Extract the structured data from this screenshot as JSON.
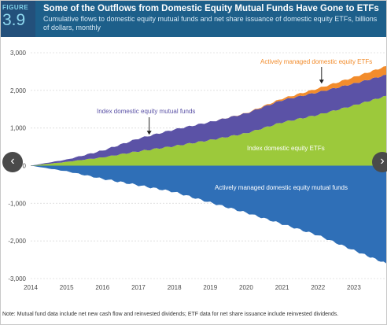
{
  "header": {
    "figure_word": "FIGURE",
    "figure_number": "3.9",
    "title": "Some of the Outflows from Domestic Equity Mutual Funds Have Gone to ETFs",
    "subtitle": "Cumulative flows to domestic equity mutual funds and net share issuance of domestic equity ETFs, billions of dollars, monthly"
  },
  "note": "Note: Mutual fund data include net new cash flow and reinvested dividends; ETF data for net share issuance include reinvested dividends.",
  "nav": {
    "prev_glyph": "‹",
    "next_glyph": "›"
  },
  "colors": {
    "header_bg": "#1d5f8a",
    "index_etf": "#9cc93b",
    "index_mutual_fund": "#5b52a6",
    "active_etf": "#f28c2c",
    "active_mutual_fund": "#2f6fb7"
  },
  "chart_data": {
    "type": "area",
    "x": [
      2014,
      2015,
      2016,
      2017,
      2018,
      2019,
      2020,
      2021,
      2022,
      2023,
      2023.9
    ],
    "ylim": [
      -3000,
      3000
    ],
    "y_ticks": [
      -3000,
      -2000,
      -1000,
      0,
      1000,
      2000,
      3000
    ],
    "y_tick_labels": [
      "-3,000",
      "-2,000",
      "-1,000",
      "0",
      "1,000",
      "2,000",
      "3,000"
    ],
    "x_ticks": [
      2014,
      2015,
      2016,
      2017,
      2018,
      2019,
      2020,
      2021,
      2022,
      2023
    ],
    "x_tick_labels": [
      "2014",
      "2015",
      "2016",
      "2017",
      "2018",
      "2019",
      "2020",
      "2021",
      "2022",
      "2023"
    ],
    "grid": true,
    "series": [
      {
        "name": "Index domestic equity ETFs",
        "stacked": "positive",
        "values": [
          0,
          100,
          220,
          380,
          520,
          680,
          860,
          1150,
          1350,
          1600,
          1850
        ]
      },
      {
        "name": "Index domestic equity mutual funds",
        "stacked": "positive",
        "values": [
          0,
          60,
          180,
          340,
          440,
          480,
          530,
          590,
          600,
          580,
          560
        ]
      },
      {
        "name": "Actively managed domestic equity ETFs",
        "stacked": "positive",
        "values": [
          0,
          0,
          0,
          0,
          0,
          0,
          5,
          40,
          100,
          170,
          230
        ]
      },
      {
        "name": "Actively managed domestic equity mutual funds",
        "stacked": "negative",
        "values": [
          0,
          -150,
          -350,
          -520,
          -700,
          -980,
          -1250,
          -1550,
          -1850,
          -2250,
          -2600
        ]
      }
    ],
    "annotations": [
      {
        "text": "Actively managed domestic equity ETFs",
        "arrow_to": [
          2022.1,
          2180
        ]
      },
      {
        "text": "Index domestic equity mutual funds",
        "arrow_to": [
          2017.3,
          820
        ]
      },
      {
        "text": "Index domestic equity ETFs"
      },
      {
        "text": "Actively managed domestic equity mutual funds"
      }
    ]
  }
}
